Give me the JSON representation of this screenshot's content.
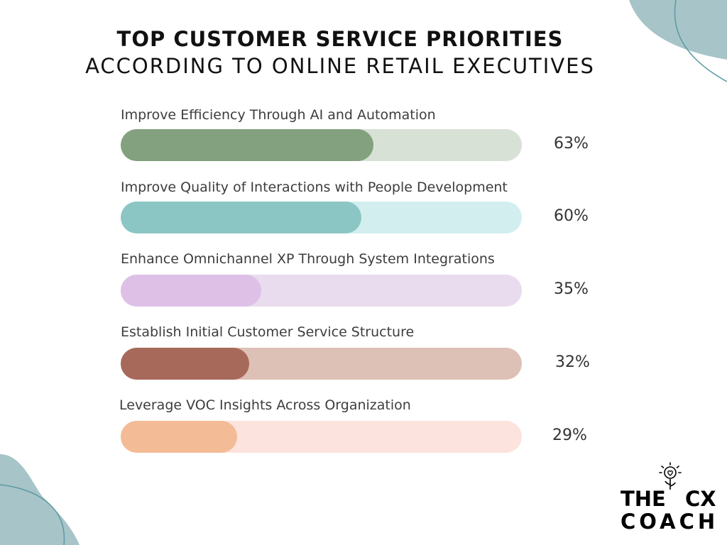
{
  "chart_data": {
    "type": "bar",
    "orientation": "horizontal",
    "title": "TOP CUSTOMER SERVICE PRIORITIES",
    "subtitle": "ACCORDING TO ONLINE RETAIL EXECUTIVES",
    "unit": "%",
    "xlim": [
      0,
      100
    ],
    "categories": [
      "Improve Efficiency Through AI and Automation",
      "Improve Quality of Interactions with People Development",
      "Enhance Omnichannel XP Through System Integrations",
      "Establish Initial Customer Service Structure",
      "Leverage VOC Insights Across Organization"
    ],
    "values": [
      63,
      60,
      35,
      32,
      29
    ],
    "value_labels": [
      "63%",
      "60%",
      "35%",
      "32%",
      "29%"
    ],
    "colors": [
      {
        "fill": "#84a17f",
        "track": "#d8e1d6"
      },
      {
        "fill": "#8cc6c4",
        "track": "#d3eeee"
      },
      {
        "fill": "#dec0e6",
        "track": "#e8dcee"
      },
      {
        "fill": "#a7695a",
        "track": "#ddc1b6"
      },
      {
        "fill": "#f3bb96",
        "track": "#fde3dd"
      }
    ]
  },
  "logo": {
    "line1_left": "THE",
    "line1_right": "CX",
    "line2": "COACH"
  },
  "decor_color": "#a7c4c8"
}
